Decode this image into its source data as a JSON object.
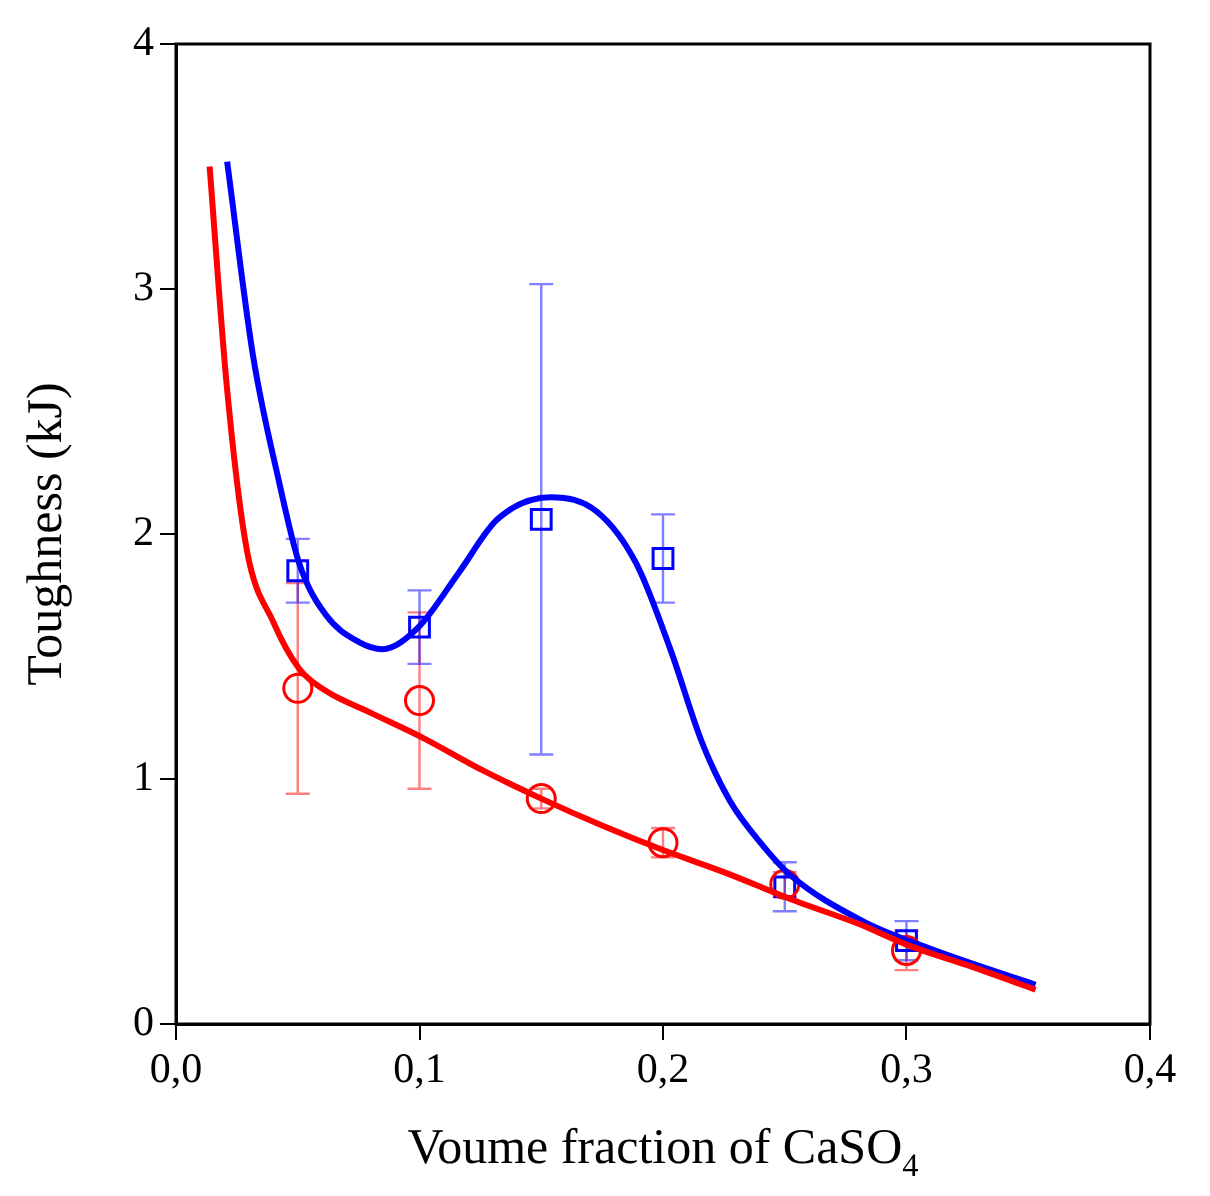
{
  "chart_data": {
    "type": "scatter",
    "xlabel": "Voume fraction of CaSO$_{4}$",
    "ylabel": "Toughness (kJ)",
    "xlim": [
      0,
      0.4
    ],
    "ylim": [
      0,
      4
    ],
    "xticks": [
      {
        "value": 0,
        "label": "0,0"
      },
      {
        "value": 0.1,
        "label": "0,1"
      },
      {
        "value": 0.2,
        "label": "0,2"
      },
      {
        "value": 0.3,
        "label": "0,3"
      },
      {
        "value": 0.4,
        "label": "0,4"
      }
    ],
    "yticks": [
      0,
      1,
      2,
      3,
      4
    ],
    "grid": false,
    "legend": false,
    "series": [
      {
        "type": "line",
        "color": "#ff0000",
        "marker": "none",
        "x": [
          0.0138,
          0.0209,
          0.029,
          0.04,
          0.0506,
          0.0615,
          0.08,
          0.101,
          0.125,
          0.15,
          0.175,
          0.2,
          0.225,
          0.255,
          0.28,
          0.301,
          0.325,
          0.353
        ],
        "values": [
          3.5,
          2.6,
          1.94,
          1.64,
          1.45,
          1.36,
          1.27,
          1.17,
          1.04,
          0.92,
          0.81,
          0.71,
          0.62,
          0.5,
          0.41,
          0.32,
          0.24,
          0.14
        ]
      },
      {
        "type": "line",
        "color": "#0000ff",
        "marker": "none",
        "x": [
          0.021,
          0.0316,
          0.0424,
          0.0506,
          0.0615,
          0.075,
          0.0848,
          0.0996,
          0.116,
          0.132,
          0.154,
          0.173,
          0.189,
          0.203,
          0.216,
          0.2275,
          0.24,
          0.252,
          0.282,
          0.309,
          0.353
        ],
        "values": [
          3.52,
          2.73,
          2.21,
          1.88,
          1.67,
          1.56,
          1.53,
          1.62,
          1.84,
          2.06,
          2.15,
          2.09,
          1.88,
          1.53,
          1.15,
          0.91,
          0.74,
          0.61,
          0.42,
          0.31,
          0.16
        ]
      },
      {
        "type": "scatter",
        "color": "#ff0000",
        "marker": "circle",
        "x": [
          0.05,
          0.1,
          0.15,
          0.2,
          0.25,
          0.3
        ],
        "values": [
          1.37,
          1.32,
          0.92,
          0.74,
          0.57,
          0.3
        ],
        "errors": [
          0.43,
          0.36,
          0.04,
          0.06,
          0.05,
          0.08
        ]
      },
      {
        "type": "scatter",
        "color": "#0000ff",
        "marker": "square",
        "x": [
          0.05,
          0.1,
          0.15,
          0.2,
          0.25,
          0.3
        ],
        "values": [
          1.85,
          1.62,
          2.06,
          1.9,
          0.56,
          0.34
        ],
        "errors": [
          0.13,
          0.15,
          0.96,
          0.18,
          0.1,
          0.08
        ]
      }
    ]
  }
}
